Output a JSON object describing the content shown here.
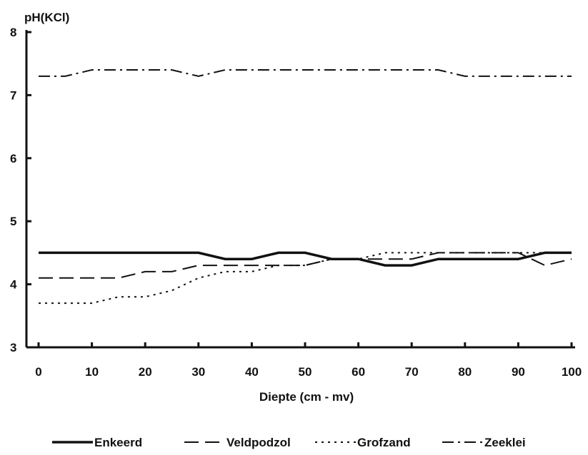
{
  "chart_data": {
    "type": "line",
    "title": "",
    "xlabel": "Diepte (cm - mv)",
    "ylabel": "pH(KCl)",
    "x": [
      0,
      5,
      10,
      15,
      20,
      25,
      30,
      35,
      40,
      45,
      50,
      55,
      60,
      65,
      70,
      75,
      80,
      85,
      90,
      95,
      100
    ],
    "xticks": [
      0,
      10,
      20,
      30,
      40,
      50,
      60,
      70,
      80,
      90,
      100
    ],
    "xlim": [
      0,
      100
    ],
    "ylim": [
      3,
      8
    ],
    "yticks": [
      3,
      4,
      5,
      6,
      7,
      8
    ],
    "grid": false,
    "legend_position": "bottom",
    "series": [
      {
        "name": "Enkeerd",
        "style": "solid",
        "values": [
          4.5,
          4.5,
          4.5,
          4.5,
          4.5,
          4.5,
          4.5,
          4.4,
          4.4,
          4.5,
          4.5,
          4.4,
          4.4,
          4.3,
          4.3,
          4.4,
          4.4,
          4.4,
          4.4,
          4.5,
          4.5
        ]
      },
      {
        "name": "Veldpodzol",
        "style": "dashed",
        "values": [
          4.1,
          4.1,
          4.1,
          4.1,
          4.2,
          4.2,
          4.3,
          4.3,
          4.3,
          4.3,
          4.3,
          4.4,
          4.4,
          4.4,
          4.4,
          4.5,
          4.5,
          4.5,
          4.5,
          4.3,
          4.4
        ]
      },
      {
        "name": "Grofzand",
        "style": "dotted",
        "values": [
          3.7,
          3.7,
          3.7,
          3.8,
          3.8,
          3.9,
          4.1,
          4.2,
          4.2,
          4.3,
          4.3,
          4.4,
          4.4,
          4.5,
          4.5,
          4.5,
          4.5,
          4.5,
          4.5,
          4.5,
          4.5
        ]
      },
      {
        "name": "Zeeklei",
        "style": "dashdot",
        "values": [
          7.3,
          7.3,
          7.4,
          7.4,
          7.4,
          7.4,
          7.3,
          7.4,
          7.4,
          7.4,
          7.4,
          7.4,
          7.4,
          7.4,
          7.4,
          7.4,
          7.3,
          7.3,
          7.3,
          7.3,
          7.3
        ]
      }
    ]
  }
}
